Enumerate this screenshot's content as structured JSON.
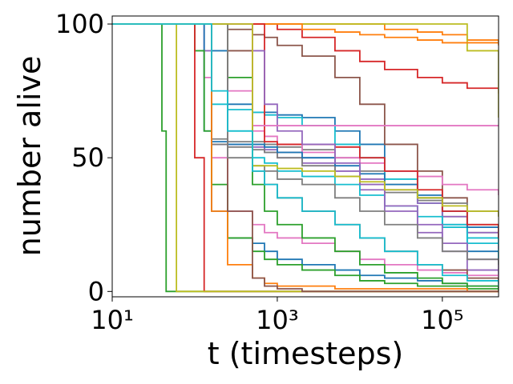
{
  "chart_data": {
    "type": "line",
    "drawstyle": "steps-post",
    "xscale": "log",
    "xlabel": "t (timesteps)",
    "ylabel": "number alive",
    "xlim": [
      10,
      480000
    ],
    "ylim": [
      -2,
      103
    ],
    "xticks": [
      {
        "value": 10,
        "label": "10¹"
      },
      {
        "value": 1000,
        "label": "10³"
      },
      {
        "value": 100000,
        "label": "10⁵"
      }
    ],
    "yticks": [
      0,
      50,
      100
    ],
    "x": [
      10,
      20,
      40,
      45,
      60,
      100,
      130,
      160,
      250,
      500,
      700,
      1000,
      2000,
      5000,
      10000,
      20000,
      50000,
      100000,
      200000,
      480000
    ],
    "series": [
      {
        "color": "#1f77b4",
        "values": [
          100,
          100,
          100,
          100,
          100,
          100,
          100,
          90,
          70,
          67,
          67,
          66,
          65,
          60,
          55,
          45,
          35,
          25,
          15,
          10
        ]
      },
      {
        "color": "#ff7f0e",
        "values": [
          100,
          100,
          100,
          100,
          100,
          100,
          100,
          100,
          100,
          100,
          100,
          100,
          100,
          100,
          100,
          98,
          97,
          96,
          94,
          92
        ]
      },
      {
        "color": "#2ca02c",
        "values": [
          100,
          100,
          60,
          0,
          0,
          0,
          0,
          0,
          0,
          0,
          0,
          0,
          0,
          0,
          0,
          0,
          0,
          0,
          0,
          0
        ]
      },
      {
        "color": "#d62728",
        "values": [
          100,
          100,
          100,
          100,
          100,
          100,
          100,
          100,
          100,
          100,
          100,
          98,
          95,
          90,
          86,
          83,
          80,
          78,
          76,
          74
        ]
      },
      {
        "color": "#9467bd",
        "values": [
          100,
          100,
          100,
          100,
          100,
          100,
          90,
          55,
          55,
          54,
          53,
          52,
          50,
          45,
          38,
          30,
          22,
          15,
          8,
          3
        ]
      },
      {
        "color": "#8c564b",
        "values": [
          100,
          100,
          100,
          100,
          100,
          100,
          100,
          100,
          98,
          96,
          95,
          92,
          88,
          80,
          70,
          55,
          45,
          35,
          25,
          20
        ]
      },
      {
        "color": "#e377c2",
        "values": [
          100,
          100,
          100,
          100,
          100,
          100,
          80,
          50,
          30,
          25,
          22,
          20,
          18,
          15,
          12,
          10,
          8,
          7,
          6,
          5
        ]
      },
      {
        "color": "#7f7f7f",
        "values": [
          100,
          100,
          100,
          100,
          100,
          100,
          100,
          57,
          56,
          56,
          55,
          54,
          53,
          50,
          45,
          40,
          34,
          28,
          22,
          18
        ]
      },
      {
        "color": "#bcbd22",
        "values": [
          100,
          100,
          100,
          100,
          100,
          100,
          100,
          100,
          100,
          100,
          100,
          100,
          100,
          100,
          100,
          100,
          100,
          100,
          90,
          65
        ]
      },
      {
        "color": "#17becf",
        "values": [
          100,
          100,
          100,
          100,
          100,
          100,
          100,
          70,
          68,
          67,
          66,
          65,
          62,
          55,
          50,
          42,
          33,
          25,
          18,
          12
        ]
      },
      {
        "color": "#1f77b4",
        "values": [
          100,
          100,
          100,
          100,
          100,
          100,
          60,
          30,
          20,
          18,
          15,
          12,
          10,
          8,
          6,
          5,
          4,
          3,
          2,
          1
        ]
      },
      {
        "color": "#ff7f0e",
        "values": [
          100,
          100,
          100,
          100,
          100,
          100,
          100,
          100,
          100,
          100,
          100,
          100,
          98,
          97,
          96,
          95,
          94,
          93,
          93,
          93
        ]
      },
      {
        "color": "#2ca02c",
        "values": [
          100,
          100,
          100,
          100,
          100,
          90,
          60,
          40,
          20,
          15,
          12,
          10,
          8,
          6,
          4,
          3,
          2,
          2,
          1,
          0
        ]
      },
      {
        "color": "#d62728",
        "values": [
          100,
          100,
          100,
          100,
          100,
          50,
          0,
          0,
          0,
          0,
          0,
          0,
          0,
          0,
          0,
          0,
          0,
          0,
          0,
          0
        ]
      },
      {
        "color": "#9467bd",
        "values": [
          100,
          100,
          100,
          100,
          100,
          100,
          100,
          55,
          55,
          55,
          52,
          50,
          48,
          45,
          42,
          38,
          33,
          28,
          22,
          16
        ]
      },
      {
        "color": "#8c564b",
        "values": [
          100,
          100,
          100,
          100,
          100,
          100,
          100,
          100,
          90,
          45,
          40,
          35,
          30,
          25,
          20,
          15,
          10,
          8,
          5,
          3
        ]
      },
      {
        "color": "#e377c2",
        "values": [
          100,
          100,
          100,
          100,
          100,
          100,
          100,
          100,
          75,
          60,
          58,
          55,
          52,
          50,
          48,
          45,
          43,
          40,
          38,
          36
        ]
      },
      {
        "color": "#7f7f7f",
        "values": [
          100,
          100,
          100,
          100,
          100,
          100,
          100,
          55,
          54,
          53,
          52,
          50,
          47,
          43,
          40,
          37,
          35,
          33,
          30,
          28
        ]
      },
      {
        "color": "#bcbd22",
        "values": [
          100,
          100,
          100,
          100,
          0,
          0,
          0,
          0,
          0,
          0,
          0,
          0,
          0,
          0,
          0,
          0,
          0,
          0,
          0,
          0
        ]
      },
      {
        "color": "#17becf",
        "values": [
          100,
          100,
          100,
          100,
          100,
          100,
          100,
          100,
          60,
          50,
          48,
          45,
          43,
          40,
          36,
          32,
          28,
          24,
          20,
          17
        ]
      },
      {
        "color": "#1f77b4",
        "values": [
          100,
          100,
          100,
          100,
          100,
          100,
          100,
          56,
          55,
          55,
          54,
          52,
          50,
          47,
          44,
          40,
          36,
          30,
          24,
          20
        ]
      },
      {
        "color": "#ff7f0e",
        "values": [
          100,
          100,
          100,
          100,
          100,
          100,
          100,
          30,
          10,
          5,
          3,
          2,
          2,
          1,
          1,
          1,
          1,
          1,
          0,
          0
        ]
      },
      {
        "color": "#2ca02c",
        "values": [
          100,
          100,
          100,
          100,
          100,
          100,
          100,
          100,
          80,
          40,
          30,
          25,
          20,
          15,
          10,
          7,
          5,
          3,
          2,
          1
        ]
      },
      {
        "color": "#d62728",
        "values": [
          100,
          100,
          100,
          100,
          100,
          100,
          100,
          100,
          100,
          100,
          56,
          55,
          55,
          54,
          50,
          45,
          38,
          30,
          25,
          20
        ]
      },
      {
        "color": "#9467bd",
        "values": [
          100,
          100,
          100,
          100,
          100,
          100,
          100,
          100,
          100,
          90,
          70,
          60,
          55,
          48,
          40,
          32,
          25,
          18,
          12,
          8
        ]
      },
      {
        "color": "#8c564b",
        "values": [
          100,
          100,
          100,
          100,
          100,
          100,
          100,
          100,
          30,
          5,
          2,
          1,
          0,
          0,
          0,
          0,
          0,
          0,
          0,
          0
        ]
      },
      {
        "color": "#e377c2",
        "values": [
          100,
          100,
          100,
          100,
          100,
          100,
          100,
          100,
          100,
          62,
          62,
          62,
          62,
          62,
          62,
          62,
          62,
          62,
          62,
          62
        ]
      },
      {
        "color": "#7f7f7f",
        "values": [
          100,
          100,
          100,
          100,
          100,
          100,
          100,
          100,
          50,
          47,
          45,
          42,
          40,
          35,
          30,
          25,
          20,
          15,
          12,
          10
        ]
      },
      {
        "color": "#bcbd22",
        "values": [
          100,
          100,
          100,
          100,
          100,
          100,
          100,
          100,
          100,
          47,
          47,
          46,
          45,
          43,
          41,
          38,
          35,
          32,
          30,
          28
        ]
      },
      {
        "color": "#17becf",
        "values": [
          100,
          100,
          100,
          100,
          100,
          100,
          100,
          75,
          60,
          45,
          40,
          35,
          30,
          25,
          20,
          15,
          10,
          6,
          4,
          2
        ]
      }
    ]
  }
}
